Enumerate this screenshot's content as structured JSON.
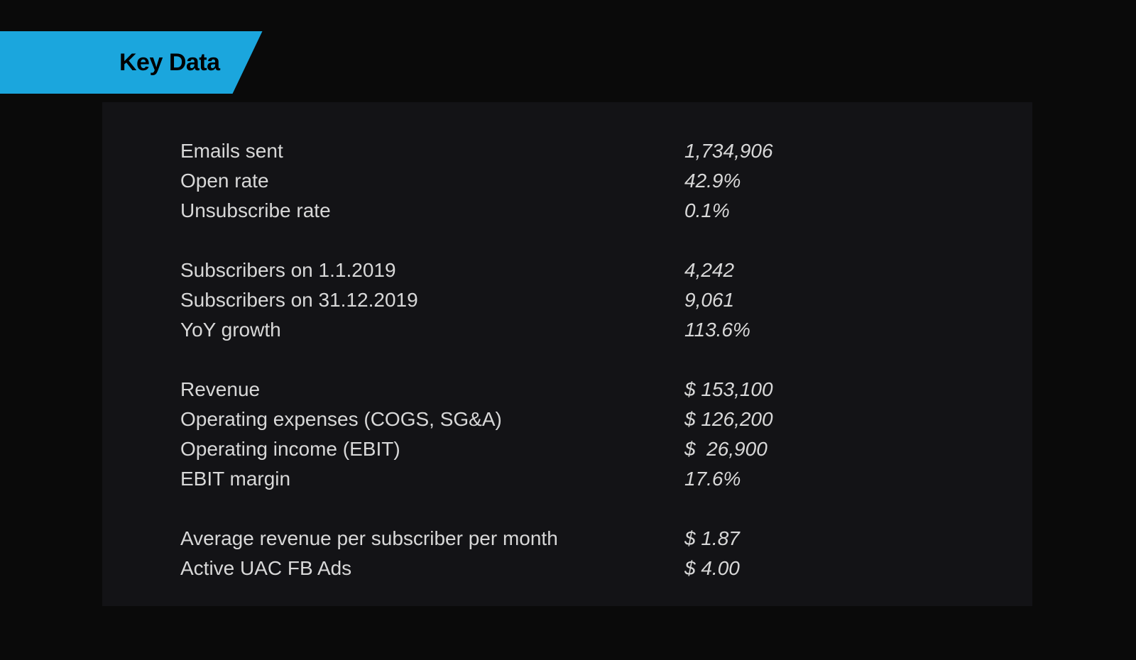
{
  "header": {
    "title": "Key Data"
  },
  "styling": {
    "background_color": "#0a0a0a",
    "panel_background_color": "#131316",
    "tab_background_color": "#1ba6dd",
    "tab_text_color": "#000000",
    "text_color": "#d8d8d8",
    "title_fontsize": 34,
    "body_fontsize": 28,
    "value_font_style": "italic",
    "label_column_width": 710
  },
  "groups": [
    {
      "rows": [
        {
          "label": "Emails sent",
          "value": "1,734,906"
        },
        {
          "label": "Open rate",
          "value": "42.9%"
        },
        {
          "label": "Unsubscribe rate",
          "value": "0.1%"
        }
      ]
    },
    {
      "rows": [
        {
          "label": "Subscribers on 1.1.2019",
          "value": "4,242"
        },
        {
          "label": "Subscribers on 31.12.2019",
          "value": "9,061"
        },
        {
          "label": "YoY growth",
          "value": "113.6%"
        }
      ]
    },
    {
      "rows": [
        {
          "label": "Revenue",
          "value": "$ 153,100"
        },
        {
          "label": "Operating expenses (COGS, SG&A)",
          "value": "$ 126,200"
        },
        {
          "label": "Operating income (EBIT)",
          "value": "$  26,900"
        },
        {
          "label": "EBIT margin",
          "value": "17.6%"
        }
      ]
    },
    {
      "rows": [
        {
          "label": "Average revenue per subscriber per month",
          "value": "$ 1.87"
        },
        {
          "label": "Active UAC FB Ads",
          "value": "$ 4.00"
        }
      ]
    }
  ]
}
